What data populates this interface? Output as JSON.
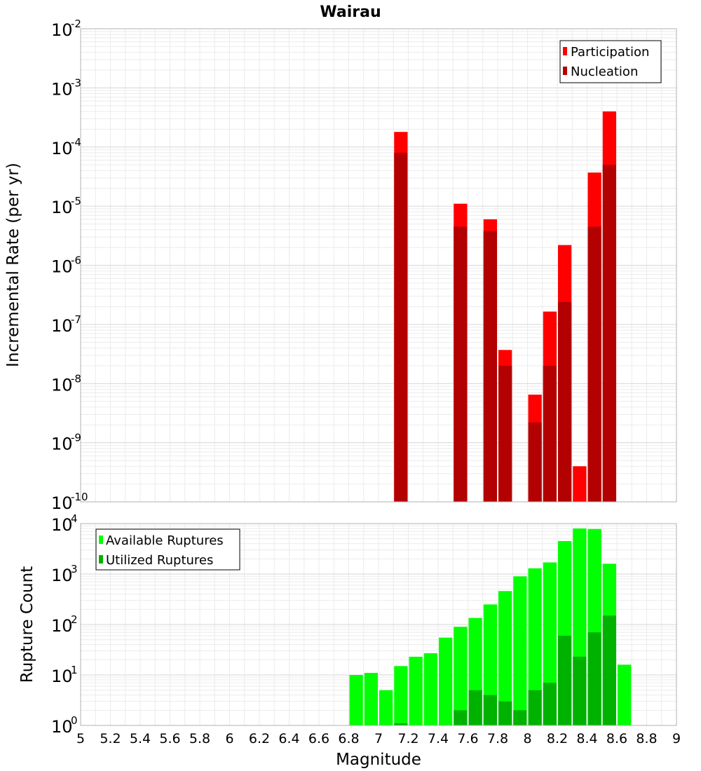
{
  "chart_data": [
    {
      "type": "bar",
      "title": "Wairau",
      "ylabel": "Incremental Rate (per yr)",
      "xlim": [
        5,
        9
      ],
      "ylim": [
        1e-10,
        0.01
      ],
      "yscale": "log",
      "yticks": [
        {
          "base": "10",
          "exp": "-10"
        },
        {
          "base": "10",
          "exp": "-9"
        },
        {
          "base": "10",
          "exp": "-8"
        },
        {
          "base": "10",
          "exp": "-7"
        },
        {
          "base": "10",
          "exp": "-6"
        },
        {
          "base": "10",
          "exp": "-5"
        },
        {
          "base": "10",
          "exp": "-4"
        },
        {
          "base": "10",
          "exp": "-3"
        },
        {
          "base": "10",
          "exp": "-2"
        }
      ],
      "grid": true,
      "legend_position": "top-right",
      "series": [
        {
          "name": "Participation",
          "color": "#ff0000",
          "x": [
            7.15,
            7.55,
            7.75,
            7.85,
            8.05,
            8.15,
            8.25,
            8.35,
            8.45,
            8.55
          ],
          "values": [
            0.00018,
            1.1e-05,
            6e-06,
            3.7e-08,
            6.5e-09,
            1.65e-07,
            2.2e-06,
            4e-10,
            3.7e-05,
            0.0004
          ]
        },
        {
          "name": "Nucleation",
          "color": "#b30000",
          "x": [
            7.15,
            7.55,
            7.75,
            7.85,
            8.05,
            8.15,
            8.25,
            8.45,
            8.55
          ],
          "values": [
            8e-05,
            4.5e-06,
            3.8e-06,
            2e-08,
            2.2e-09,
            2e-08,
            2.4e-07,
            4.5e-06,
            5e-05
          ]
        }
      ]
    },
    {
      "type": "bar",
      "xlabel": "Magnitude",
      "ylabel": "Rupture Count",
      "xlim": [
        5,
        9
      ],
      "ylim": [
        1,
        10000
      ],
      "yscale": "log",
      "yticks": [
        {
          "base": "10",
          "exp": "0"
        },
        {
          "base": "10",
          "exp": "1"
        },
        {
          "base": "10",
          "exp": "2"
        },
        {
          "base": "10",
          "exp": "3"
        },
        {
          "base": "10",
          "exp": "4"
        }
      ],
      "xticks": [
        "5",
        "5.2",
        "5.4",
        "5.6",
        "5.8",
        "6",
        "6.2",
        "6.4",
        "6.6",
        "6.8",
        "7",
        "7.2",
        "7.4",
        "7.6",
        "7.8",
        "8",
        "8.2",
        "8.4",
        "8.6",
        "8.8",
        "9"
      ],
      "grid": true,
      "legend_position": "top-left",
      "series": [
        {
          "name": "Available Ruptures",
          "color": "#00ff00",
          "x": [
            6.85,
            6.95,
            7.05,
            7.15,
            7.25,
            7.35,
            7.45,
            7.55,
            7.65,
            7.75,
            7.85,
            7.95,
            8.05,
            8.15,
            8.25,
            8.35,
            8.45,
            8.55,
            8.65
          ],
          "values": [
            10,
            11,
            5,
            15,
            23,
            27,
            55,
            90,
            135,
            250,
            460,
            900,
            1300,
            1700,
            4500,
            8000,
            7800,
            1600,
            16
          ]
        },
        {
          "name": "Utilized Ruptures",
          "color": "#00b200",
          "x": [
            7.15,
            7.55,
            7.65,
            7.75,
            7.85,
            7.95,
            8.05,
            8.15,
            8.25,
            8.35,
            8.45,
            8.55
          ],
          "values": [
            1.1,
            2,
            5,
            4,
            3,
            2,
            5,
            7,
            60,
            23,
            70,
            150
          ]
        }
      ]
    }
  ]
}
